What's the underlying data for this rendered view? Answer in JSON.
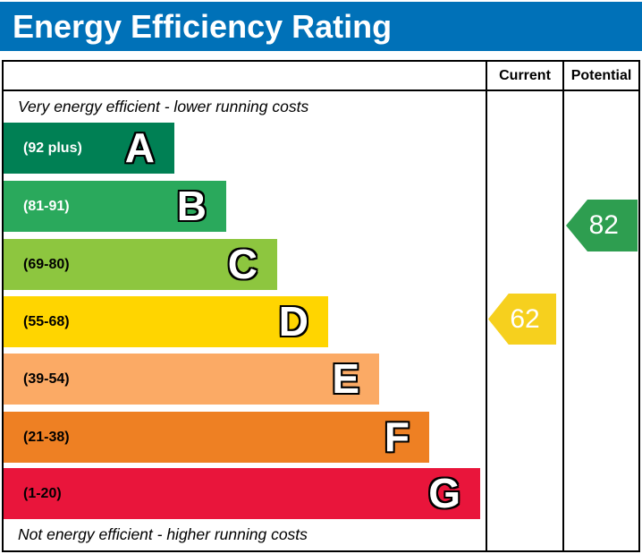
{
  "title": "Energy Efficiency Rating",
  "colors": {
    "title_bar_bg": "#0071b8",
    "title_text": "#ffffff",
    "border": "#000000"
  },
  "table": {
    "columns": [
      "Current",
      "Potential"
    ],
    "top_note": "Very energy efficient - lower running costs",
    "bottom_note": "Not energy efficient - higher running costs",
    "bands": [
      {
        "letter": "A",
        "range": "(92 plus)",
        "color": "#008054",
        "label_color": "#ffffff"
      },
      {
        "letter": "B",
        "range": "(81-91)",
        "color": "#2aa95c",
        "label_color": "#ffffff"
      },
      {
        "letter": "C",
        "range": "(69-80)",
        "color": "#8dc63f",
        "label_color": "#000000"
      },
      {
        "letter": "D",
        "range": "(55-68)",
        "color": "#ffd500",
        "label_color": "#000000"
      },
      {
        "letter": "E",
        "range": "(39-54)",
        "color": "#fbaa65",
        "label_color": "#000000"
      },
      {
        "letter": "F",
        "range": "(21-38)",
        "color": "#ee8023",
        "label_color": "#000000"
      },
      {
        "letter": "G",
        "range": "(1-20)",
        "color": "#e9153b",
        "label_color": "#000000"
      }
    ],
    "current": {
      "value": "62",
      "color": "#f6d01e",
      "band": "D"
    },
    "potential": {
      "value": "82",
      "color": "#2e9e50",
      "band": "B"
    }
  },
  "chart_data": {
    "type": "bar",
    "title": "Energy Efficiency Rating",
    "categories": [
      "A",
      "B",
      "C",
      "D",
      "E",
      "F",
      "G"
    ],
    "ranges": [
      "92 plus",
      "81-91",
      "69-80",
      "55-68",
      "39-54",
      "21-38",
      "1-20"
    ],
    "band_colors": [
      "#008054",
      "#2aa95c",
      "#8dc63f",
      "#ffd500",
      "#fbaa65",
      "#ee8023",
      "#e9153b"
    ],
    "bar_relative_widths": [
      0.36,
      0.46,
      0.57,
      0.67,
      0.78,
      0.88,
      0.99
    ],
    "legend": [
      "Current",
      "Potential"
    ],
    "current_rating": 62,
    "current_band": "D",
    "potential_rating": 82,
    "potential_band": "B",
    "annotations": [
      "Very energy efficient - lower running costs",
      "Not energy efficient - higher running costs"
    ]
  }
}
